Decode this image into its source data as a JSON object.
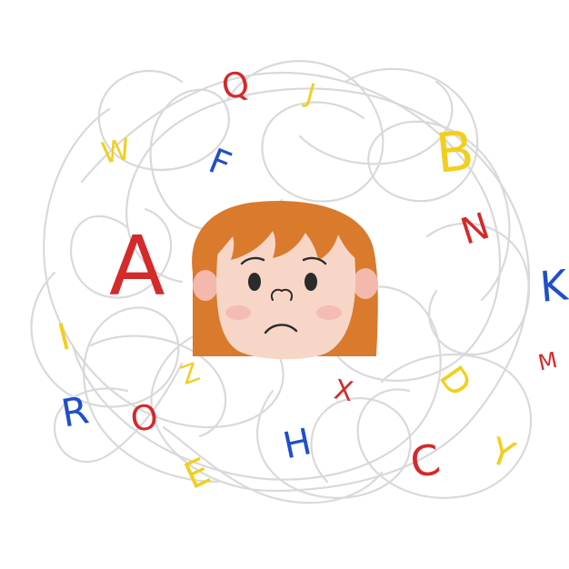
{
  "colors": {
    "background": "#ffffff",
    "scribble": "#d9d9d9",
    "hair": "#d97a2c",
    "hair_dark": "#c56a22",
    "skin": "#f7d6c8",
    "blush": "#f2a7a0",
    "ear": "#f4b8ac",
    "feature": "#2b2b2b",
    "red": "#d32a2a",
    "blue": "#1f4fc9",
    "yellow": "#f2cf1c"
  },
  "icons": {
    "face": "worried-girl-face-icon",
    "scribble": "tangled-thread-icon"
  },
  "letters": [
    {
      "char": "Q",
      "color": "red"
    },
    {
      "char": "J",
      "color": "yellow"
    },
    {
      "char": "W",
      "color": "yellow"
    },
    {
      "char": "F",
      "color": "blue"
    },
    {
      "char": "B",
      "color": "yellow"
    },
    {
      "char": "A",
      "color": "red"
    },
    {
      "char": "N",
      "color": "red"
    },
    {
      "char": "K",
      "color": "blue"
    },
    {
      "char": "I",
      "color": "yellow"
    },
    {
      "char": "M",
      "color": "red"
    },
    {
      "char": "Z",
      "color": "yellow"
    },
    {
      "char": "D",
      "color": "yellow"
    },
    {
      "char": "X",
      "color": "red"
    },
    {
      "char": "R",
      "color": "blue"
    },
    {
      "char": "O",
      "color": "red"
    },
    {
      "char": "H",
      "color": "blue"
    },
    {
      "char": "E",
      "color": "yellow"
    },
    {
      "char": "C",
      "color": "red"
    },
    {
      "char": "Y",
      "color": "yellow"
    }
  ]
}
